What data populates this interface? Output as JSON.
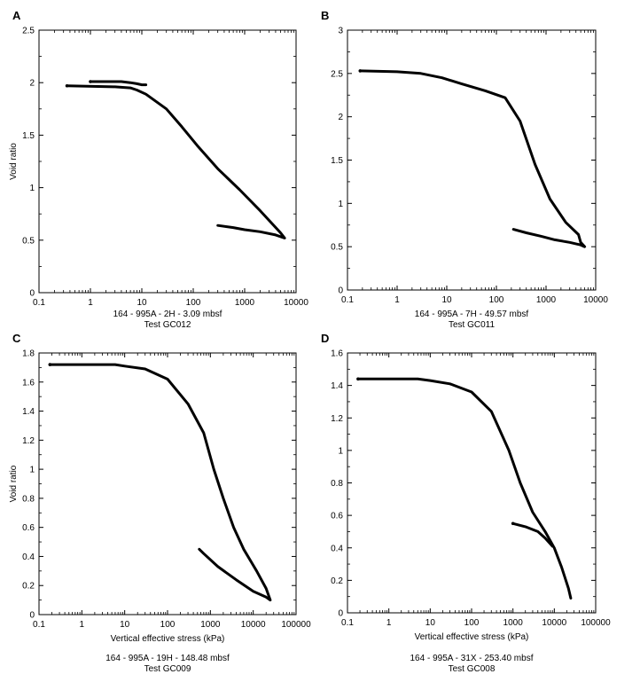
{
  "chart_data": [
    {
      "type": "line",
      "panel": "A",
      "xscale": "log",
      "xlim": [
        0.1,
        10000
      ],
      "ylim": [
        0,
        2.5
      ],
      "xticks": [
        "0.1",
        "1",
        "10",
        "100",
        "1000",
        "10000"
      ],
      "yticks": [
        "0",
        "0.5",
        "1",
        "1.5",
        "2",
        "2.5"
      ],
      "xlabel": "",
      "ylabel": "Void ratio",
      "caption": [
        "164 - 995A - 2H - 3.09 mbsf",
        "Test GC012"
      ],
      "series": [
        {
          "x": [
            0.35,
            3,
            6,
            8,
            12,
            30,
            60,
            120,
            300,
            800,
            2000,
            5000,
            6000,
            4000,
            2000,
            1000,
            600,
            300
          ],
          "y": [
            1.97,
            1.96,
            1.95,
            1.93,
            1.89,
            1.75,
            1.58,
            1.4,
            1.18,
            0.98,
            0.78,
            0.57,
            0.52,
            0.55,
            0.58,
            0.6,
            0.62,
            0.64
          ]
        },
        {
          "x": [
            1,
            4,
            6,
            8,
            10,
            12
          ],
          "y": [
            2.01,
            2.01,
            2.0,
            1.99,
            1.98,
            1.98
          ]
        }
      ]
    },
    {
      "type": "line",
      "panel": "B",
      "xscale": "log",
      "xlim": [
        0.1,
        10000
      ],
      "ylim": [
        0,
        3
      ],
      "xticks": [
        "0.1",
        "1",
        "10",
        "100",
        "1000",
        "10000"
      ],
      "yticks": [
        "0",
        "0.5",
        "1",
        "1.5",
        "2",
        "2.5",
        "3"
      ],
      "xlabel": "",
      "ylabel": "",
      "caption": [
        "164 - 995A - 7H - 49.57 mbsf",
        "Test GC011"
      ],
      "series": [
        {
          "x": [
            0.18,
            1,
            3,
            8,
            20,
            60,
            150,
            300,
            600,
            1200,
            2500,
            4500,
            5000,
            6000,
            5000,
            3000,
            1500,
            800,
            400,
            220
          ],
          "y": [
            2.53,
            2.52,
            2.5,
            2.45,
            2.38,
            2.3,
            2.22,
            1.95,
            1.45,
            1.05,
            0.78,
            0.64,
            0.55,
            0.5,
            0.52,
            0.55,
            0.58,
            0.62,
            0.66,
            0.7
          ]
        }
      ]
    },
    {
      "type": "line",
      "panel": "C",
      "xscale": "log",
      "xlim": [
        0.1,
        100000
      ],
      "ylim": [
        0,
        1.8
      ],
      "xticks": [
        "0.1",
        "1",
        "10",
        "100",
        "1000",
        "10000",
        "100000"
      ],
      "yticks": [
        "0",
        "0.2",
        "0.4",
        "0.6",
        "0.8",
        "1",
        "1.2",
        "1.4",
        "1.6",
        "1.8"
      ],
      "xlabel": "Vertical effective stress (kPa)",
      "ylabel": "Void ratio",
      "caption": [
        "164 - 995A - 19H - 148.48 mbsf",
        "Test GC009"
      ],
      "series": [
        {
          "x": [
            0.18,
            6,
            10,
            30,
            100,
            300,
            700,
            1200,
            2000,
            3500,
            6000,
            12000,
            20000,
            25000,
            20000,
            10000,
            4000,
            1500,
            700,
            550
          ],
          "y": [
            1.72,
            1.72,
            1.71,
            1.69,
            1.62,
            1.45,
            1.25,
            1.0,
            0.8,
            0.6,
            0.45,
            0.3,
            0.18,
            0.1,
            0.12,
            0.16,
            0.24,
            0.33,
            0.42,
            0.45
          ]
        }
      ]
    },
    {
      "type": "line",
      "panel": "D",
      "xscale": "log",
      "xlim": [
        0.1,
        100000
      ],
      "ylim": [
        0,
        1.6
      ],
      "xticks": [
        "0.1",
        "1",
        "10",
        "100",
        "1000",
        "10000",
        "100000"
      ],
      "yticks": [
        "0",
        "0.2",
        "0.4",
        "0.6",
        "0.8",
        "1",
        "1.2",
        "1.4",
        "1.6"
      ],
      "xlabel": "Vertical effective stress (kPa)",
      "ylabel": "",
      "caption": [
        "164 - 995A - 31X - 253.40 mbsf",
        "Test GC008"
      ],
      "series": [
        {
          "x": [
            0.18,
            5,
            10,
            30,
            100,
            300,
            800,
            1500,
            3000,
            6000,
            10000,
            15000,
            22000,
            25000
          ],
          "y": [
            1.44,
            1.44,
            1.43,
            1.41,
            1.36,
            1.24,
            1.0,
            0.8,
            0.62,
            0.5,
            0.4,
            0.28,
            0.15,
            0.09
          ]
        },
        {
          "x": [
            1000,
            2000,
            4000,
            6000,
            9000
          ],
          "y": [
            0.55,
            0.53,
            0.5,
            0.46,
            0.41
          ]
        }
      ]
    }
  ]
}
